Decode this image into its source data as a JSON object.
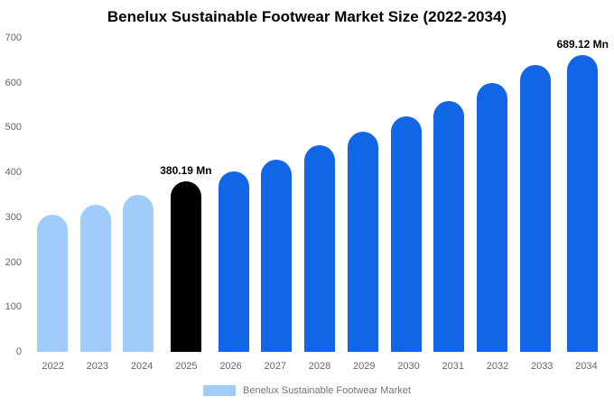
{
  "chart_data": {
    "type": "bar",
    "title": "Benelux Sustainable Footwear Market Size (2022-2034)",
    "categories": [
      "2022",
      "2023",
      "2024",
      "2025",
      "2026",
      "2027",
      "2028",
      "2029",
      "2030",
      "2031",
      "2032",
      "2033",
      "2034"
    ],
    "values": [
      305,
      327,
      351,
      380.19,
      403,
      429,
      460,
      490,
      524,
      560,
      599,
      640,
      689.12
    ],
    "bar_colors": [
      "#9FCCF9",
      "#9FCCF9",
      "#9FCCF9",
      "#000000",
      "#1166E8",
      "#1166E8",
      "#1166E8",
      "#1166E8",
      "#1166E8",
      "#1166E8",
      "#1166E8",
      "#1166E8",
      "#1166E8"
    ],
    "annotations": [
      {
        "index": 3,
        "text": "380.19 Mn"
      },
      {
        "index": 12,
        "text": "689.12 Mn"
      }
    ],
    "xlabel": "",
    "ylabel": "",
    "ylim": [
      0,
      700
    ],
    "yticks": [
      0,
      100,
      200,
      300,
      400,
      500,
      600,
      700
    ],
    "grid": false,
    "legend_position": "bottom"
  },
  "legend": {
    "label": "Benelux Sustainable Footwear Market",
    "swatch_color": "#9FCCF9"
  },
  "colors": {
    "light_blue": "#9FCCF9",
    "forecast_blue": "#1166E8",
    "highlight_black": "#000000",
    "axis_text": "#666666",
    "background": "#FFFFFF"
  }
}
